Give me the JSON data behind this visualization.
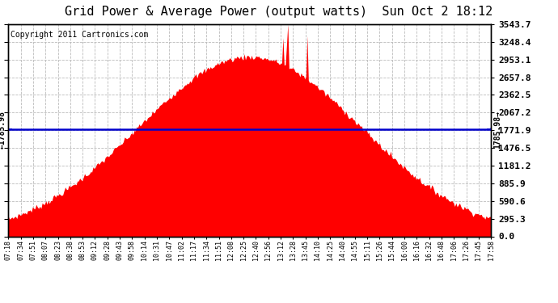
{
  "title": "Grid Power & Average Power (output watts)  Sun Oct 2 18:12",
  "copyright": "Copyright 2011 Cartronics.com",
  "average_value": 1785.98,
  "y_max": 3543.7,
  "y_ticks": [
    0.0,
    295.3,
    590.6,
    885.9,
    1181.2,
    1476.5,
    1771.9,
    2067.2,
    2362.5,
    2657.8,
    2953.1,
    3248.4,
    3543.7
  ],
  "fill_color": "#FF0000",
  "line_color": "#0000CC",
  "background_color": "#FFFFFF",
  "grid_color": "#BBBBBB",
  "title_fontsize": 11,
  "copyright_fontsize": 7,
  "x_labels": [
    "07:18",
    "07:34",
    "07:51",
    "08:07",
    "08:23",
    "08:38",
    "08:53",
    "09:12",
    "09:28",
    "09:43",
    "09:58",
    "10:14",
    "10:31",
    "10:47",
    "11:02",
    "11:17",
    "11:34",
    "11:51",
    "12:08",
    "12:25",
    "12:40",
    "12:56",
    "13:12",
    "13:28",
    "13:45",
    "14:10",
    "14:25",
    "14:40",
    "14:55",
    "15:11",
    "15:26",
    "15:44",
    "16:00",
    "16:16",
    "16:32",
    "16:48",
    "17:06",
    "17:26",
    "17:45",
    "17:58"
  ]
}
